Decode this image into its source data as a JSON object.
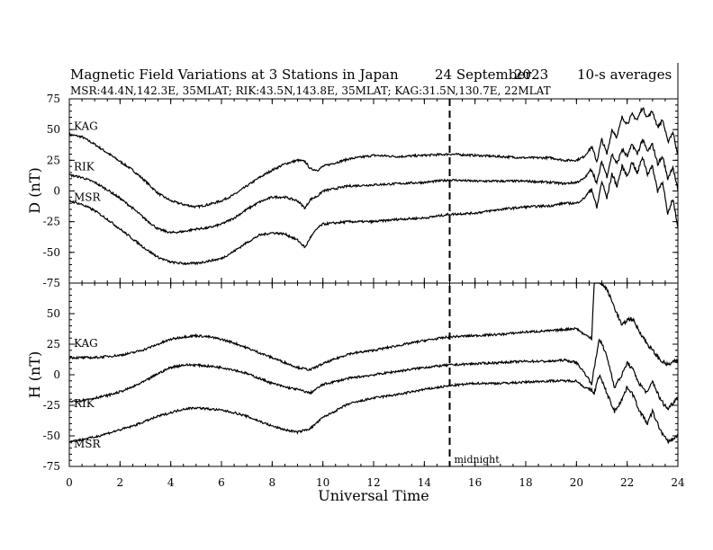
{
  "header": {
    "title": "Magnetic Field Variations at 3 Stations in Japan",
    "date": "24 September",
    "year": "2023",
    "averaging": "10-s averages",
    "stations_info": "MSR:44.4N,142.3E, 35MLAT;  RIK:43.5N,143.8E, 35MLAT;  KAG:31.5N,130.7E, 22MLAT"
  },
  "chart_data": [
    {
      "type": "line",
      "panel": "top",
      "ylabel": "D (nT)",
      "xlabel": "",
      "xlim": [
        0,
        24
      ],
      "ylim": [
        -75,
        75
      ],
      "yticks": [
        75,
        50,
        25,
        0,
        -25,
        -50,
        -75
      ],
      "grid": false,
      "series": [
        {
          "name": "KAG",
          "color": "#000000",
          "x": [
            0,
            0.5,
            1,
            1.5,
            2,
            2.5,
            3,
            3.5,
            4,
            4.5,
            5,
            5.5,
            6,
            6.5,
            7,
            7.5,
            8,
            8.5,
            9,
            9.3,
            9.5,
            9.8,
            10,
            11,
            12,
            13,
            14,
            15,
            16,
            17,
            18,
            19,
            19.5,
            20,
            20.3,
            20.6,
            20.8,
            21,
            21.2,
            21.4,
            21.6,
            21.8,
            22,
            22.2,
            22.4,
            22.6,
            22.8,
            23,
            23.2,
            23.4,
            23.6,
            23.8,
            24
          ],
          "y": [
            46,
            44,
            38,
            31,
            24,
            17,
            8,
            -2,
            -8,
            -11,
            -13,
            -11,
            -8,
            -3,
            4,
            11,
            17,
            22,
            25,
            24,
            18,
            17,
            20,
            26,
            29,
            28,
            29,
            30,
            29,
            28,
            27,
            27,
            25,
            25,
            28,
            36,
            24,
            42,
            30,
            50,
            44,
            60,
            55,
            62,
            58,
            68,
            60,
            65,
            52,
            58,
            40,
            48,
            30
          ]
        },
        {
          "name": "RIK",
          "color": "#000000",
          "x": [
            0,
            0.5,
            1,
            1.5,
            2,
            2.5,
            3,
            3.5,
            4,
            4.5,
            5,
            5.5,
            6,
            6.5,
            7,
            7.5,
            8,
            8.5,
            9,
            9.3,
            9.5,
            9.8,
            10,
            11,
            12,
            13,
            14,
            15,
            16,
            17,
            18,
            19,
            19.5,
            20,
            20.3,
            20.6,
            20.8,
            21,
            21.2,
            21.4,
            21.6,
            21.8,
            22,
            22.2,
            22.4,
            22.6,
            22.8,
            23,
            23.2,
            23.4,
            23.6,
            23.8,
            24
          ],
          "y": [
            13,
            11,
            7,
            1,
            -6,
            -14,
            -23,
            -31,
            -34,
            -33,
            -31,
            -30,
            -27,
            -22,
            -15,
            -9,
            -5,
            -5,
            -8,
            -14,
            -7,
            -4,
            0,
            4,
            5,
            6,
            7,
            9,
            8,
            8,
            8,
            7,
            6,
            7,
            10,
            18,
            6,
            24,
            12,
            30,
            22,
            34,
            28,
            38,
            30,
            42,
            32,
            38,
            22,
            28,
            10,
            20,
            0
          ]
        },
        {
          "name": "MSR",
          "color": "#000000",
          "x": [
            0,
            0.5,
            1,
            1.5,
            2,
            2.5,
            3,
            3.5,
            4,
            4.5,
            5,
            5.5,
            6,
            6.5,
            7,
            7.5,
            8,
            8.5,
            9,
            9.3,
            9.5,
            9.8,
            10,
            11,
            12,
            13,
            14,
            15,
            16,
            17,
            18,
            19,
            19.5,
            20,
            20.3,
            20.6,
            20.8,
            21,
            21.2,
            21.4,
            21.6,
            21.8,
            22,
            22.2,
            22.4,
            22.6,
            22.8,
            23,
            23.2,
            23.4,
            23.6,
            23.8,
            24
          ],
          "y": [
            -8,
            -11,
            -16,
            -23,
            -31,
            -39,
            -47,
            -54,
            -58,
            -59,
            -59,
            -57,
            -55,
            -49,
            -42,
            -36,
            -34,
            -35,
            -40,
            -46,
            -38,
            -30,
            -27,
            -25,
            -25,
            -23,
            -22,
            -19,
            -18,
            -15,
            -13,
            -12,
            -10,
            -10,
            -6,
            2,
            -14,
            8,
            -6,
            14,
            4,
            20,
            12,
            24,
            14,
            28,
            14,
            20,
            0,
            8,
            -20,
            -6,
            -30
          ]
        }
      ]
    },
    {
      "type": "line",
      "panel": "bottom",
      "ylabel": "H (nT)",
      "xlabel": "Universal Time",
      "xlim": [
        0,
        24
      ],
      "ylim": [
        -75,
        75
      ],
      "yticks": [
        50,
        25,
        0,
        -25,
        -50,
        -75
      ],
      "xticks": [
        0,
        2,
        4,
        6,
        8,
        10,
        12,
        14,
        16,
        18,
        20,
        22,
        24
      ],
      "grid": false,
      "annotations": [
        {
          "x": 15,
          "text": "midnight"
        }
      ],
      "series": [
        {
          "name": "KAG",
          "color": "#000000",
          "x": [
            0,
            0.5,
            1,
            1.5,
            2,
            2.5,
            3,
            3.5,
            4,
            4.5,
            5,
            5.5,
            6,
            6.5,
            7,
            7.5,
            8,
            8.5,
            9,
            9.5,
            10,
            11,
            12,
            13,
            14,
            15,
            16,
            17,
            18,
            19,
            19.5,
            20,
            20.3,
            20.6,
            20.7,
            20.9,
            21.2,
            21.5,
            21.8,
            22,
            22.2,
            22.5,
            22.8,
            23,
            23.3,
            23.6,
            24
          ],
          "y": [
            14,
            14,
            14,
            15,
            16,
            18,
            21,
            25,
            29,
            31,
            32,
            31,
            29,
            26,
            22,
            18,
            14,
            10,
            6,
            4,
            9,
            17,
            20,
            24,
            28,
            31,
            32,
            33,
            35,
            36,
            37,
            38,
            33,
            30,
            75,
            76,
            70,
            55,
            40,
            45,
            46,
            35,
            25,
            20,
            12,
            8,
            12
          ]
        },
        {
          "name": "RIK",
          "color": "#000000",
          "x": [
            0,
            0.5,
            1,
            1.5,
            2,
            2.5,
            3,
            3.5,
            4,
            4.5,
            5,
            5.5,
            6,
            6.5,
            7,
            7.5,
            8,
            8.5,
            9,
            9.5,
            10,
            11,
            12,
            13,
            14,
            15,
            16,
            17,
            18,
            19,
            19.5,
            20,
            20.3,
            20.6,
            20.7,
            20.9,
            21.2,
            21.5,
            21.8,
            22,
            22.2,
            22.5,
            22.8,
            23,
            23.3,
            23.6,
            24
          ],
          "y": [
            -22,
            -21,
            -19,
            -17,
            -14,
            -10,
            -5,
            1,
            6,
            8,
            8,
            7,
            6,
            4,
            1,
            -3,
            -7,
            -10,
            -12,
            -15,
            -8,
            -3,
            0,
            3,
            6,
            8,
            9,
            10,
            11,
            11,
            12,
            10,
            2,
            -7,
            5,
            30,
            15,
            -10,
            0,
            10,
            5,
            -8,
            -15,
            -5,
            -20,
            -28,
            -18
          ]
        },
        {
          "name": "MSR",
          "color": "#000000",
          "x": [
            0,
            0.5,
            1,
            1.5,
            2,
            2.5,
            3,
            3.5,
            4,
            4.5,
            5,
            5.5,
            6,
            6.5,
            7,
            7.5,
            8,
            8.5,
            9,
            9.5,
            10,
            11,
            12,
            13,
            14,
            15,
            16,
            17,
            18,
            19,
            19.5,
            20,
            20.3,
            20.6,
            20.7,
            20.9,
            21.2,
            21.5,
            21.8,
            22,
            22.2,
            22.5,
            22.8,
            23,
            23.3,
            23.6,
            24
          ],
          "y": [
            -55,
            -53,
            -51,
            -48,
            -45,
            -42,
            -38,
            -34,
            -31,
            -28,
            -27,
            -28,
            -29,
            -31,
            -34,
            -38,
            -42,
            -45,
            -47,
            -44,
            -35,
            -24,
            -19,
            -16,
            -12,
            -9,
            -7,
            -7,
            -6,
            -5,
            -5,
            -5,
            -10,
            -13,
            -15,
            0,
            -15,
            -30,
            -20,
            -10,
            -15,
            -30,
            -40,
            -30,
            -45,
            -55,
            -50
          ]
        }
      ]
    }
  ]
}
